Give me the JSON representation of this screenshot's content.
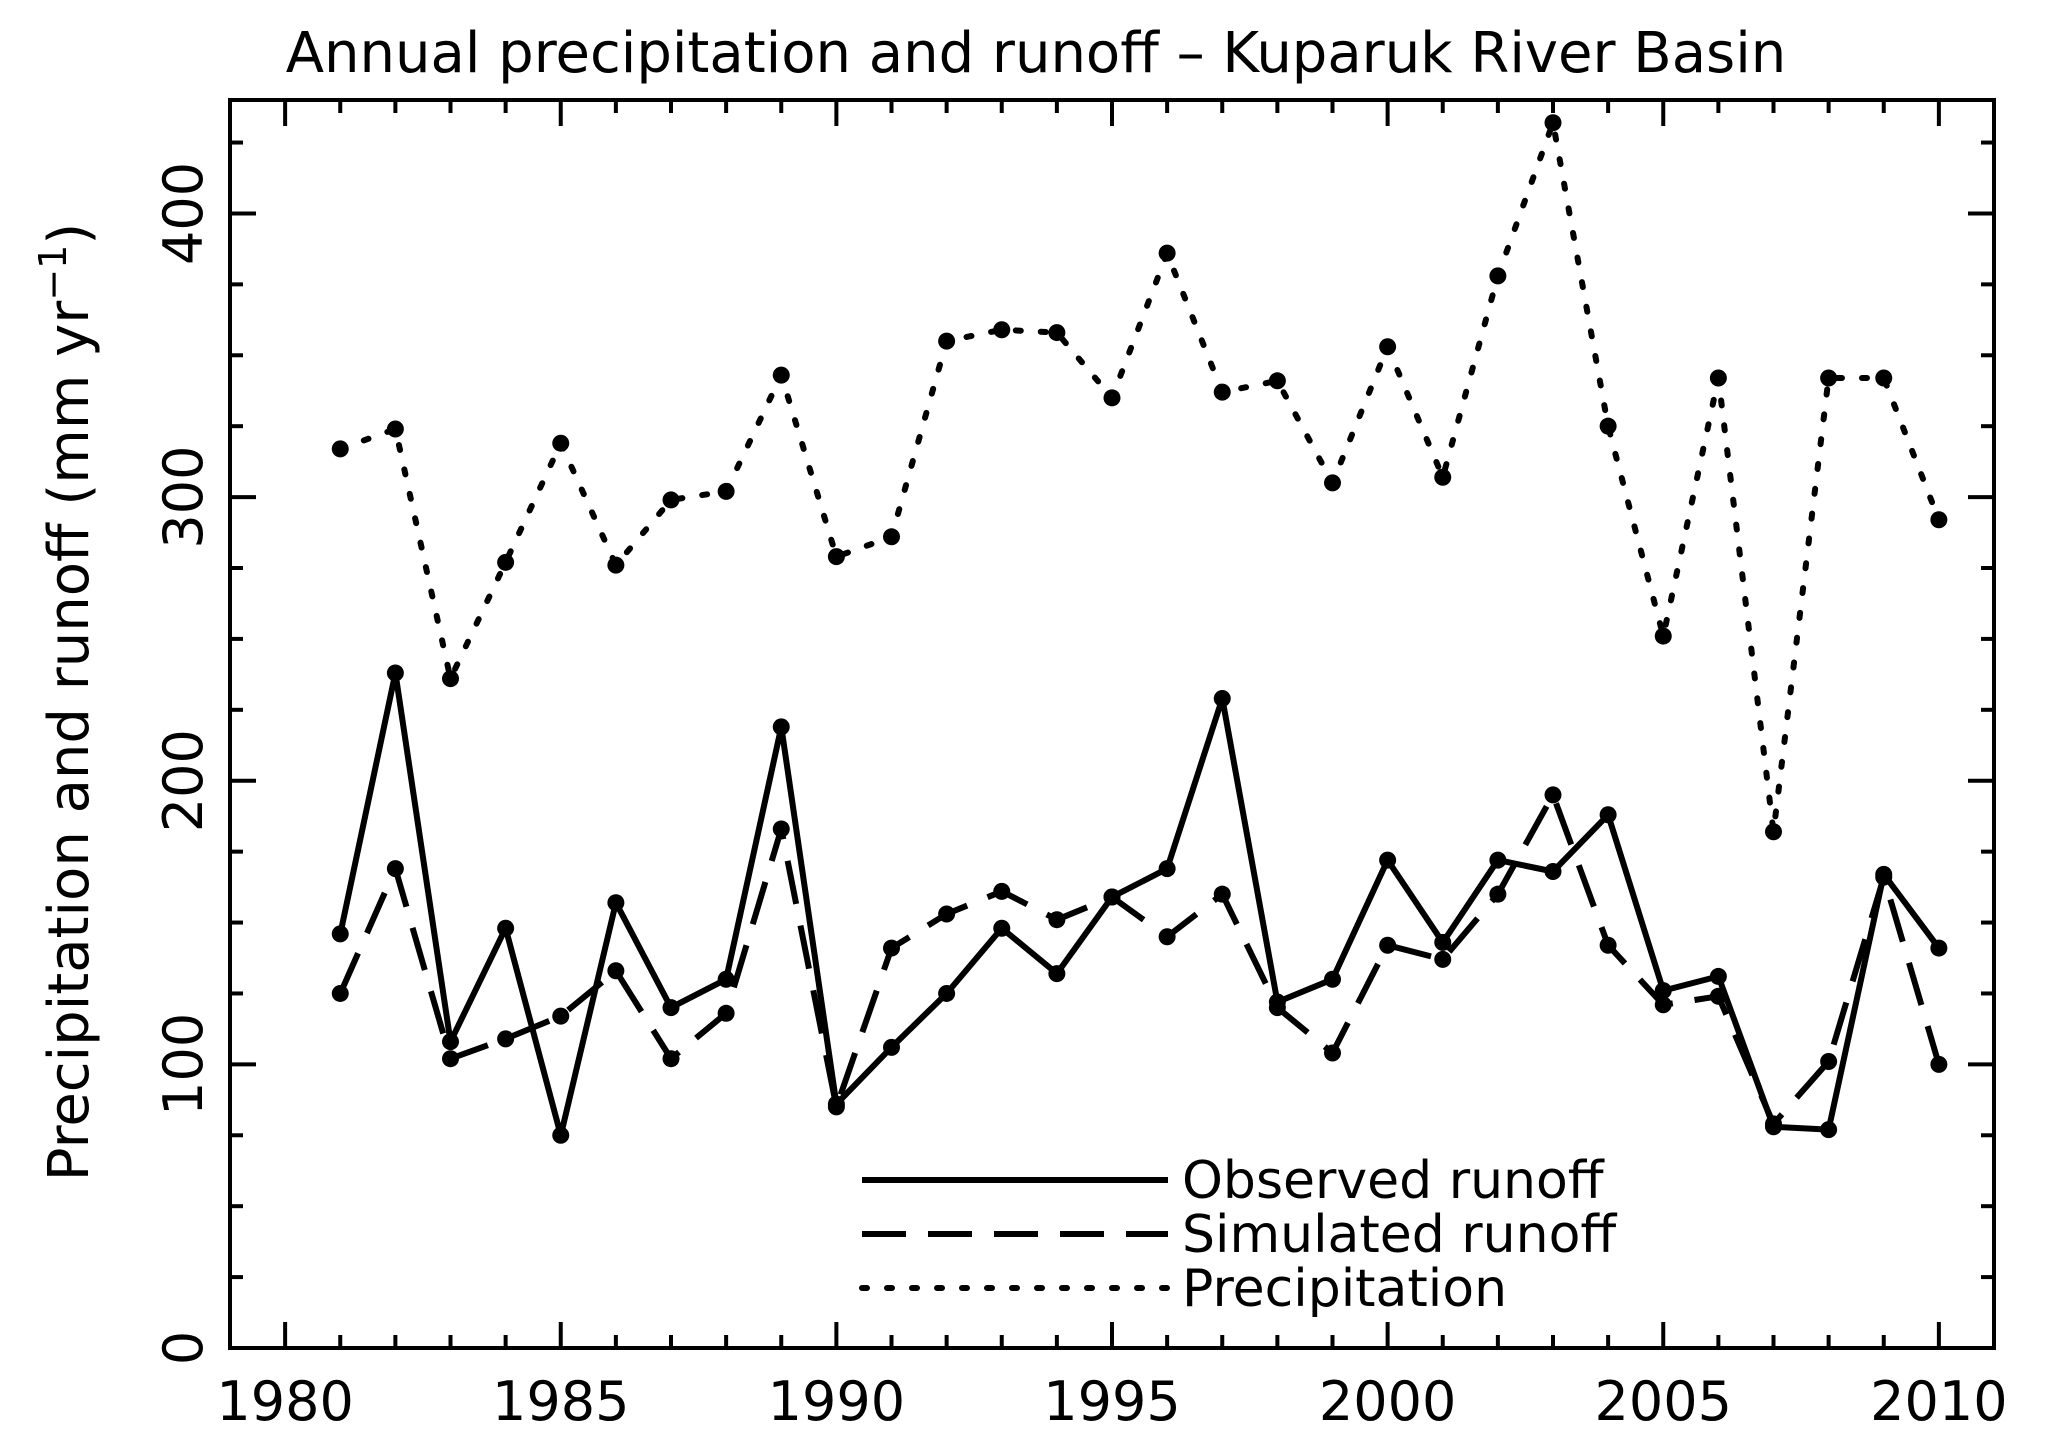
{
  "chart_data": {
    "type": "line",
    "title": "Annual precipitation and runoff – Kuparuk River Basin",
    "ylabel": "Precipitation and runoff (mm yr",
    "ylabel_sup": "−1",
    "ylabel_close": ")",
    "xlabel": "",
    "xlim": [
      1979,
      2011
    ],
    "ylim": [
      0,
      440
    ],
    "x_ticks_major": [
      1980,
      1985,
      1990,
      1995,
      2000,
      2005,
      2010
    ],
    "x_ticks_minor": [
      1981,
      1982,
      1983,
      1984,
      1986,
      1987,
      1988,
      1989,
      1991,
      1992,
      1993,
      1994,
      1996,
      1997,
      1998,
      1999,
      2001,
      2002,
      2003,
      2004,
      2006,
      2007,
      2008,
      2009
    ],
    "y_ticks_major": [
      0,
      100,
      200,
      300,
      400
    ],
    "y_ticks_minor": [
      25,
      50,
      75,
      125,
      150,
      175,
      225,
      250,
      275,
      325,
      350,
      375,
      425
    ],
    "x": [
      1981,
      1982,
      1983,
      1984,
      1985,
      1986,
      1987,
      1988,
      1989,
      1990,
      1991,
      1992,
      1993,
      1994,
      1995,
      1996,
      1997,
      1998,
      1999,
      2000,
      2001,
      2002,
      2003,
      2004,
      2005,
      2006,
      2007,
      2008,
      2009,
      2010
    ],
    "legend_position": "bottom-center",
    "series": [
      {
        "name": "Observed runoff",
        "style": "solid",
        "values": [
          146,
          238,
          108,
          148,
          75,
          157,
          120,
          130,
          219,
          86,
          106,
          125,
          148,
          132,
          159,
          169,
          229,
          122,
          130,
          172,
          143,
          172,
          168,
          188,
          126,
          131,
          78,
          77,
          167,
          141
        ]
      },
      {
        "name": "Simulated runoff",
        "style": "dashed",
        "values": [
          125,
          169,
          102,
          109,
          117,
          133,
          102,
          118,
          183,
          85,
          141,
          153,
          161,
          151,
          159,
          145,
          160,
          120,
          104,
          142,
          137,
          160,
          195,
          142,
          121,
          124,
          79,
          101,
          166,
          100
        ]
      },
      {
        "name": "Precipitation",
        "style": "dotted",
        "values": [
          317,
          324,
          236,
          277,
          319,
          276,
          299,
          302,
          343,
          279,
          286,
          355,
          359,
          358,
          335,
          386,
          337,
          341,
          305,
          353,
          307,
          378,
          432,
          325,
          251,
          342,
          182,
          342,
          342,
          292
        ]
      }
    ]
  }
}
